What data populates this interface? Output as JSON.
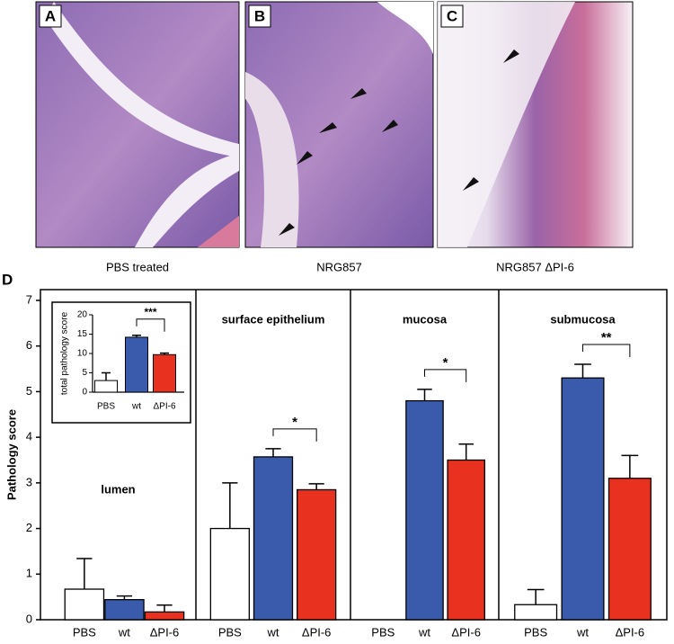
{
  "figure": {
    "images": [
      {
        "label": "A",
        "caption": "PBS treated"
      },
      {
        "label": "B",
        "caption": "NRG857"
      },
      {
        "label": "C",
        "caption": "NRG857 ΔPI-6"
      }
    ],
    "chart_label": "D"
  },
  "chart_data": [
    {
      "type": "bar",
      "ylabel": "Pathology score",
      "ylim": [
        0,
        7
      ],
      "yticks": [
        0,
        1,
        2,
        3,
        4,
        5,
        6,
        7
      ],
      "colors": [
        "#ffffff",
        "#3a5bab",
        "#e8321f"
      ],
      "panels": [
        {
          "title": "lumen",
          "categories": [
            "PBS",
            "wt",
            "ΔPI-6"
          ],
          "values": [
            0.67,
            0.44,
            0.17
          ],
          "errors": [
            0.67,
            0.08,
            0.15
          ]
        },
        {
          "title": "surface epithelium",
          "categories": [
            "PBS",
            "wt",
            "ΔPI-6"
          ],
          "values": [
            2.0,
            3.57,
            2.85
          ],
          "errors": [
            1.0,
            0.18,
            0.13
          ],
          "significance": "*"
        },
        {
          "title": "mucosa",
          "categories": [
            "PBS",
            "wt",
            "ΔPI-6"
          ],
          "values": [
            0,
            4.8,
            3.5
          ],
          "errors": [
            null,
            0.25,
            0.35
          ],
          "significance": "*"
        },
        {
          "title": "submucosa",
          "categories": [
            "PBS",
            "wt",
            "ΔPI-6"
          ],
          "values": [
            0.33,
            5.3,
            3.1
          ],
          "errors": [
            0.33,
            0.3,
            0.5
          ],
          "significance": "**"
        }
      ]
    },
    {
      "type": "bar",
      "ylabel": "total pathology score",
      "ylim": [
        0,
        20
      ],
      "yticks": [
        0,
        5,
        10,
        15,
        20
      ],
      "colors": [
        "#ffffff",
        "#3a5bab",
        "#e8321f"
      ],
      "categories": [
        "PBS",
        "wt",
        "ΔPI-6"
      ],
      "values": [
        3,
        14.2,
        9.7
      ],
      "errors": [
        2,
        0.5,
        0.4
      ],
      "significance": "***"
    }
  ]
}
